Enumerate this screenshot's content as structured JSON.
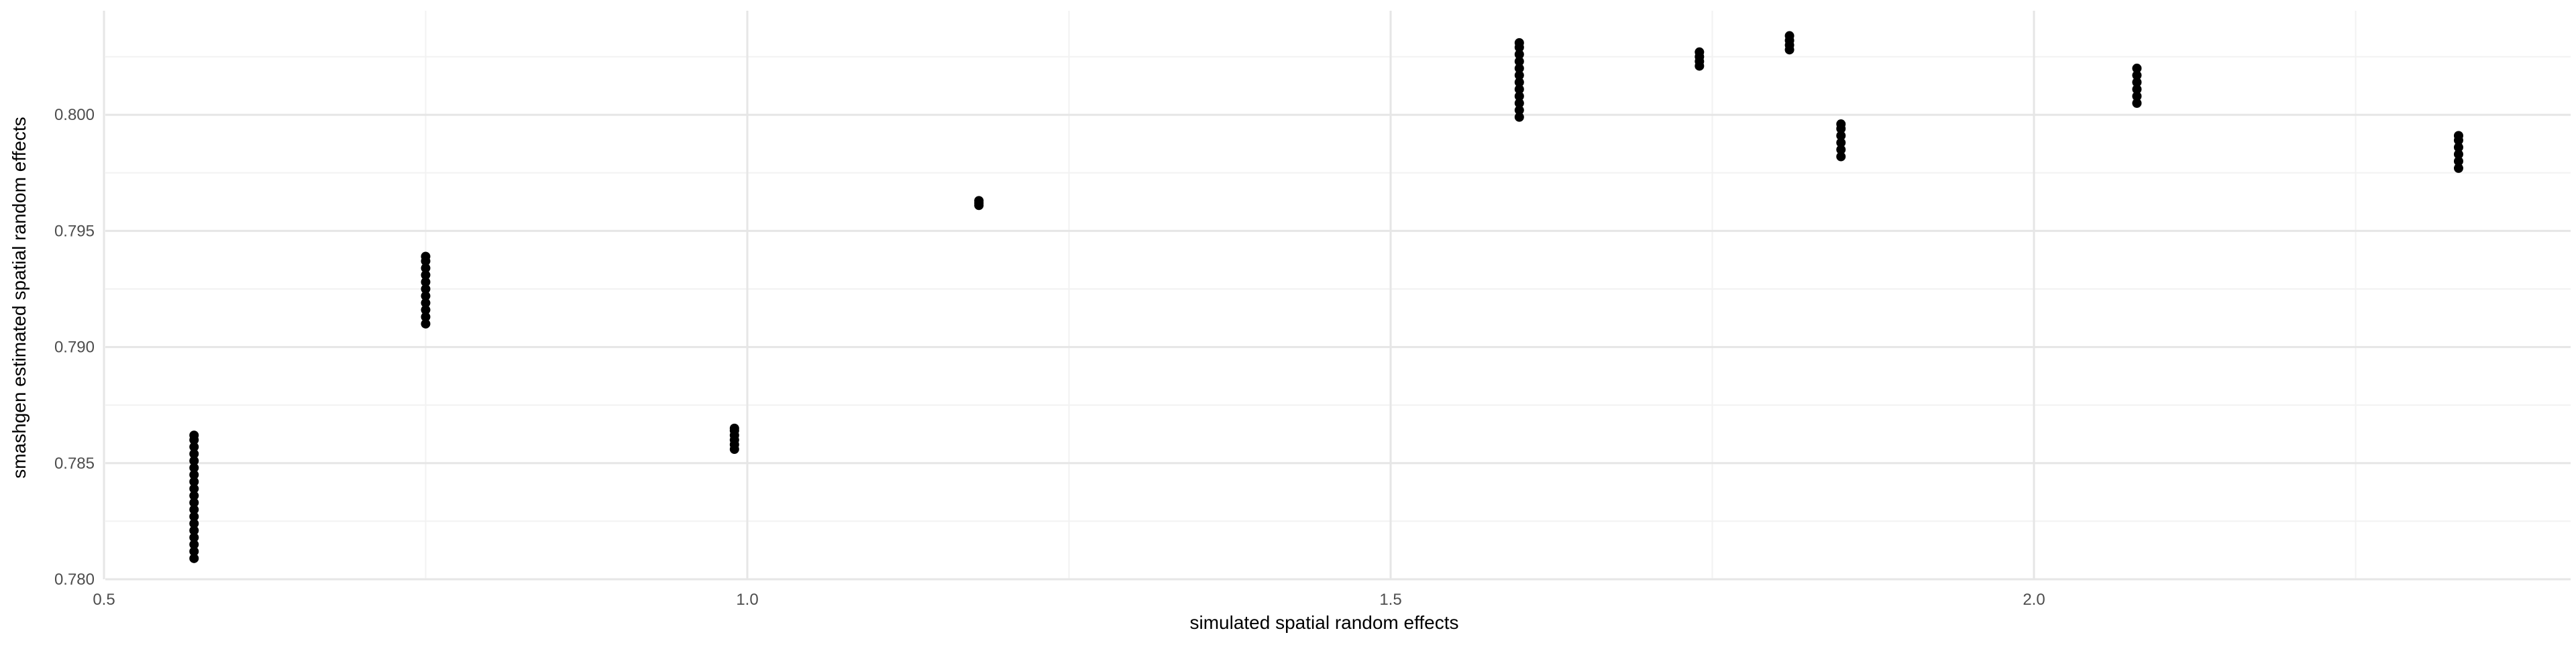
{
  "chart_data": {
    "type": "scatter",
    "title": "",
    "xlabel": "simulated spatial random effects",
    "ylabel": "smashgen estimated spatial random effects",
    "xlim": [
      0.5,
      2.4
    ],
    "ylim": [
      0.78,
      0.805
    ],
    "x_ticks": [
      0.5,
      1.0,
      1.5,
      2.0
    ],
    "x_tick_labels": [
      "0.5",
      "1.0",
      "1.5",
      "2.0"
    ],
    "y_ticks": [
      0.78,
      0.785,
      0.79,
      0.795,
      0.8
    ],
    "y_tick_labels": [
      "0.780",
      "0.785",
      "0.790",
      "0.795",
      "0.800"
    ],
    "grid": true,
    "point_color": "#000000",
    "points": [
      {
        "x": 0.57,
        "y": [
          0.7809,
          0.7812,
          0.7815,
          0.7818,
          0.7821,
          0.7824,
          0.7827,
          0.783,
          0.7833,
          0.7836,
          0.7839,
          0.7842,
          0.7845,
          0.7848,
          0.7851,
          0.7854,
          0.7857,
          0.786,
          0.7862
        ]
      },
      {
        "x": 0.75,
        "y": [
          0.791,
          0.7913,
          0.7916,
          0.7919,
          0.7922,
          0.7925,
          0.7928,
          0.7931,
          0.7934,
          0.7937,
          0.7939
        ]
      },
      {
        "x": 0.99,
        "y": [
          0.7856,
          0.7858,
          0.786,
          0.7862,
          0.7864,
          0.7865
        ]
      },
      {
        "x": 1.18,
        "y": [
          0.7961,
          0.7962,
          0.7963
        ]
      },
      {
        "x": 1.6,
        "y": [
          0.7999,
          0.8002,
          0.8005,
          0.8008,
          0.8011,
          0.8014,
          0.8017,
          0.802,
          0.8023,
          0.8026,
          0.8029,
          0.8031
        ]
      },
      {
        "x": 1.74,
        "y": [
          0.8021,
          0.8023,
          0.8025,
          0.8027
        ]
      },
      {
        "x": 1.81,
        "y": [
          0.8028,
          0.803,
          0.8032,
          0.8034
        ]
      },
      {
        "x": 1.85,
        "y": [
          0.7982,
          0.7985,
          0.7988,
          0.7991,
          0.7994,
          0.7996
        ]
      },
      {
        "x": 2.08,
        "y": [
          0.8005,
          0.8008,
          0.8011,
          0.8014,
          0.8017,
          0.802
        ]
      },
      {
        "x": 2.33,
        "y": [
          0.7977,
          0.798,
          0.7983,
          0.7986,
          0.7989,
          0.7991
        ]
      }
    ]
  }
}
